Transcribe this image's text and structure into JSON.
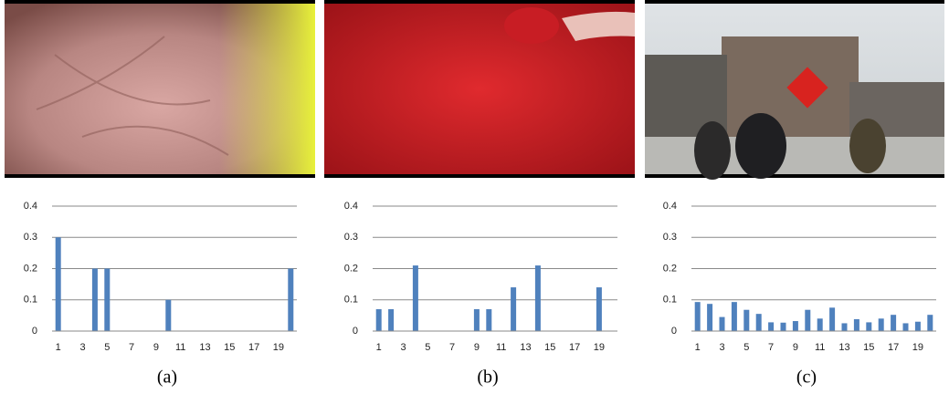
{
  "chart_data": [
    {
      "type": "bar",
      "caption": "(a)",
      "color": "#4f81bd",
      "categories": [
        "1",
        null,
        "3",
        null,
        "5",
        null,
        "7",
        null,
        "9",
        null,
        "11",
        null,
        "13",
        null,
        "15",
        null,
        "17",
        null,
        "19",
        null
      ],
      "values": [
        0.3,
        0,
        0,
        0.2,
        0.2,
        0,
        0,
        0,
        0,
        0.1,
        0,
        0,
        0,
        0,
        0,
        0,
        0,
        0,
        0,
        0.2
      ],
      "ylim": [
        0,
        0.4
      ],
      "yticks": [
        0,
        0.1,
        0.2,
        0.3,
        0.4
      ],
      "grid": true
    },
    {
      "type": "bar",
      "caption": "(b)",
      "color": "#4f81bd",
      "categories": [
        "1",
        null,
        "3",
        null,
        "5",
        null,
        "7",
        null,
        "9",
        null,
        "11",
        null,
        "13",
        null,
        "15",
        null,
        "17",
        null,
        "19",
        null
      ],
      "values": [
        0.07,
        0.07,
        0,
        0.21,
        0,
        0,
        0,
        0,
        0.07,
        0.07,
        0,
        0.14,
        0,
        0.21,
        0,
        0,
        0,
        0,
        0.14,
        0
      ],
      "ylim": [
        0,
        0.4
      ],
      "yticks": [
        0,
        0.1,
        0.2,
        0.3,
        0.4
      ],
      "grid": true
    },
    {
      "type": "bar",
      "caption": "(c)",
      "color": "#4f81bd",
      "categories": [
        "1",
        null,
        "3",
        null,
        "5",
        null,
        "7",
        null,
        "9",
        null,
        "11",
        null,
        "13",
        null,
        "15",
        null,
        "17",
        null,
        "19",
        null
      ],
      "values": [
        0.093,
        0.087,
        0.045,
        0.093,
        0.068,
        0.055,
        0.028,
        0.027,
        0.032,
        0.068,
        0.04,
        0.075,
        0.025,
        0.038,
        0.028,
        0.04,
        0.052,
        0.025,
        0.03,
        0.052
      ],
      "ylim": [
        0,
        0.4
      ],
      "yticks": [
        0,
        0.1,
        0.2,
        0.3,
        0.4
      ],
      "grid": true
    }
  ]
}
